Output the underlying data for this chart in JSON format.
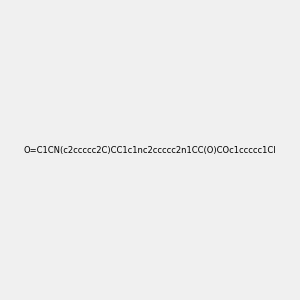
{
  "smiles": "O=C1CN(c2ccccc2C)CC1c1nc2ccccc2n1CC(O)COc1ccccc1Cl",
  "title": "",
  "background_color": "#f0f0f0",
  "figsize": [
    3.0,
    3.0
  ],
  "dpi": 100
}
